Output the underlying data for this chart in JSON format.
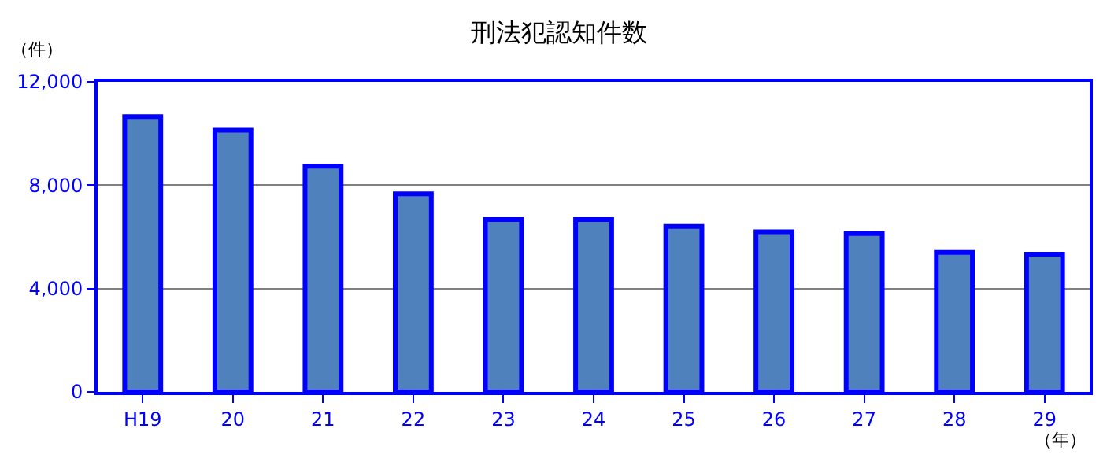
{
  "chart_data": {
    "type": "bar",
    "title": "刑法犯認知件数",
    "categories": [
      "H19",
      "20",
      "21",
      "22",
      "23",
      "24",
      "25",
      "26",
      "27",
      "28",
      "29"
    ],
    "values": [
      10650,
      10130,
      8730,
      7670,
      6670,
      6670,
      6400,
      6200,
      6130,
      5400,
      5330
    ],
    "color": "#4f81bd",
    "ylim": [
      0,
      12000
    ],
    "yticks": [
      0,
      {
        "value": 4000,
        "label": "4,000"
      },
      {
        "value": 8000,
        "label": "8,000"
      },
      {
        "value": 12000,
        "label": "12,000"
      }
    ],
    "grid": "y",
    "annotations": [
      "（件）",
      "（年）"
    ]
  }
}
